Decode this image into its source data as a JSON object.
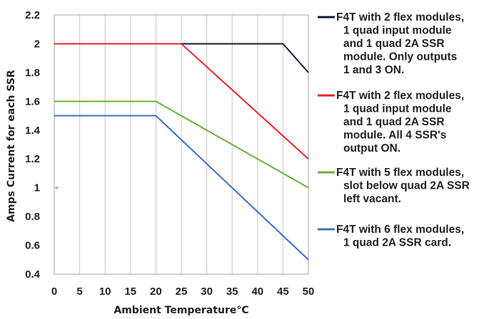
{
  "chart_data": {
    "type": "line",
    "title": "",
    "xlabel": "Ambient Temperature°C",
    "ylabel": "Amps Current for each SSR",
    "xlim": [
      0,
      50
    ],
    "ylim": [
      0.4,
      2.2
    ],
    "x_ticks": [
      "0",
      "5",
      "10",
      "15",
      "20",
      "25",
      "30",
      "35",
      "40",
      "45",
      "50"
    ],
    "y_ticks": [
      "0.4",
      "0.6",
      "0.8",
      "1",
      "1.2",
      "1.4",
      "1.6",
      "1.8",
      "2",
      "2.2"
    ],
    "grid": "vertical",
    "legend_position": "right",
    "series": [
      {
        "name": "F4T with 2 flex modules, 1 quad input module and 1 quad 2A SSR module. Only outputs 1 and 3 ON.",
        "legend_lines": [
          "F4T with 2 flex modules,",
          "1 quad input module",
          "and 1 quad 2A SSR",
          "module. Only outputs",
          "1 and 3 ON."
        ],
        "color": "#0d1a33",
        "points": [
          [
            0,
            2.0
          ],
          [
            25,
            2.0
          ],
          [
            45,
            2.0
          ],
          [
            50,
            1.8
          ]
        ]
      },
      {
        "name": "F4T with 2 flex modules, 1 quad input module and 1 quad 2A SSR module. All 4 SSR's output ON.",
        "legend_lines": [
          "F4T with 2 flex modules,",
          "1 quad input module",
          "and 1 quad 2A SSR",
          "module. All 4 SSR's",
          "output ON."
        ],
        "color": "#e8262a",
        "points": [
          [
            0,
            2.0
          ],
          [
            25,
            2.0
          ],
          [
            50,
            1.2
          ]
        ]
      },
      {
        "name": "F4T with 5 flex modules, slot below quad 2A SSR left vacant.",
        "legend_lines": [
          "F4T with 5 flex modules,",
          "slot below quad 2A SSR",
          "left vacant."
        ],
        "color": "#6ab23e",
        "points": [
          [
            0,
            1.6
          ],
          [
            20,
            1.6
          ],
          [
            50,
            1.0
          ]
        ]
      },
      {
        "name": "F4T with 6 flex modules, 1 quad 2A SSR card.",
        "legend_lines": [
          "F4T with 6 flex modules,",
          "1 quad 2A SSR card."
        ],
        "color": "#3d6fc4",
        "points": [
          [
            0,
            1.5
          ],
          [
            20,
            1.5
          ],
          [
            50,
            0.5
          ]
        ]
      }
    ],
    "annotation": {
      "type": "green-mark",
      "color": "#6ab23e",
      "points": [
        [
          0.2,
          1.0
        ],
        [
          0.8,
          1.0
        ]
      ]
    }
  }
}
